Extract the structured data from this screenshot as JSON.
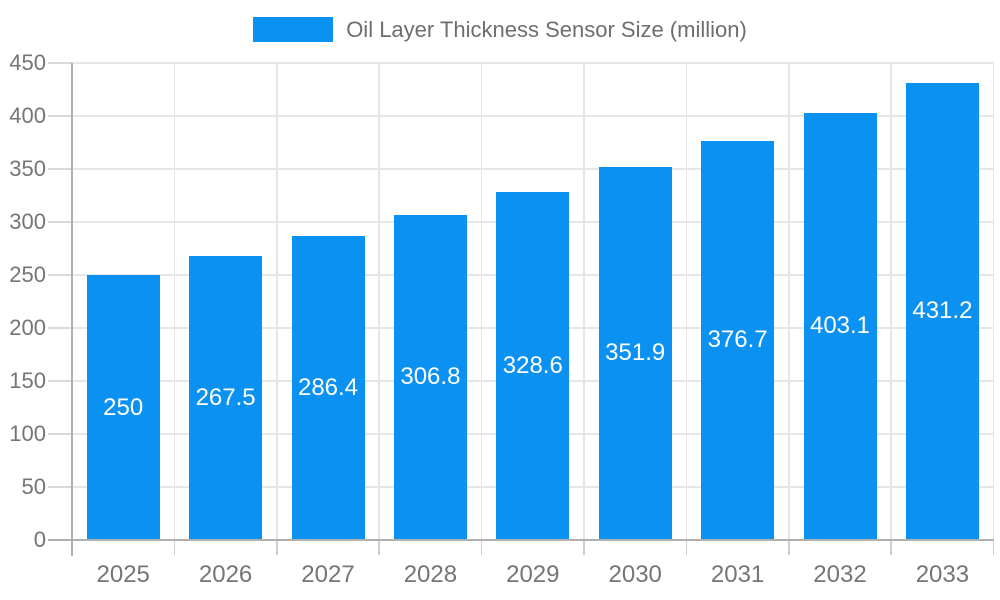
{
  "legend": {
    "label": "Oil Layer Thickness Sensor Size (million)",
    "swatch_color": "#0a91f2"
  },
  "chart_data": {
    "type": "bar",
    "title": "Oil Layer Thickness Sensor Size (million)",
    "categories": [
      "2025",
      "2026",
      "2027",
      "2028",
      "2029",
      "2030",
      "2031",
      "2032",
      "2033"
    ],
    "values": [
      250,
      267.5,
      286.4,
      306.8,
      328.6,
      351.9,
      376.7,
      403.1,
      431.2
    ],
    "value_labels": [
      "250",
      "267.5",
      "286.4",
      "306.8",
      "328.6",
      "351.9",
      "376.7",
      "403.1",
      "431.2"
    ],
    "xlabel": "",
    "ylabel": "",
    "ylim": [
      0,
      450
    ],
    "ytick_interval": 50,
    "yticks": [
      0,
      50,
      100,
      150,
      200,
      250,
      300,
      350,
      400,
      450
    ],
    "ytick_labels": [
      "0",
      "50",
      "100",
      "150",
      "200",
      "250",
      "300",
      "350",
      "400",
      "450"
    ],
    "grid": true,
    "legend_position": "top-center",
    "value_label_position": "middle-of-bar",
    "colors": {
      "bar": "#0a91f2",
      "value_label": "#ffffff",
      "axis_line": "#b0b0b0",
      "gridline": "#e6e6e6",
      "axis_text": "#757575",
      "legend_text": "#6e6e6e",
      "background": "#ffffff"
    }
  }
}
